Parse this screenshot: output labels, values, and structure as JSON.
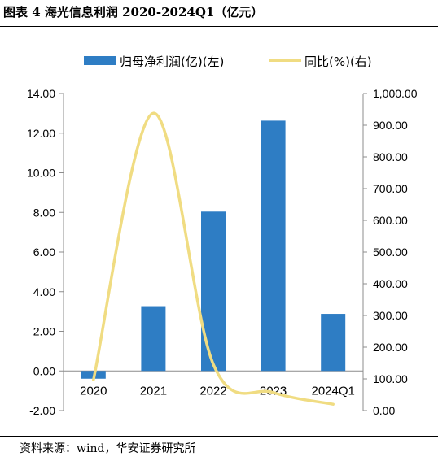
{
  "title": "图表 4 海光信息利润 2020-2024Q1（亿元）",
  "source": "资料来源：wind，华安证券研究所",
  "chart_data": {
    "type": "bar+line",
    "categories": [
      "2020",
      "2021",
      "2022",
      "2023",
      "2024Q1"
    ],
    "series": [
      {
        "name": "归母净利润(亿)(左)",
        "type": "bar",
        "axis": "left",
        "color": "#2e7dc4",
        "values": [
          -0.39,
          3.27,
          8.04,
          12.63,
          2.88
        ]
      },
      {
        "name": "同比(%)(右)",
        "type": "line",
        "axis": "right",
        "color": "#f0dc82",
        "values": [
          97,
          938,
          146,
          57,
          20
        ]
      }
    ],
    "y_left": {
      "min": -2,
      "max": 14,
      "step": 2,
      "ticks": [
        "-2.00",
        "0.00",
        "2.00",
        "4.00",
        "6.00",
        "8.00",
        "10.00",
        "12.00",
        "14.00"
      ]
    },
    "y_right": {
      "min": 0,
      "max": 1000,
      "step": 100,
      "ticks": [
        "0.00",
        "100.00",
        "200.00",
        "300.00",
        "400.00",
        "500.00",
        "600.00",
        "700.00",
        "800.00",
        "900.00",
        "1,000.00"
      ]
    },
    "legend_position": "top",
    "grid": false
  }
}
